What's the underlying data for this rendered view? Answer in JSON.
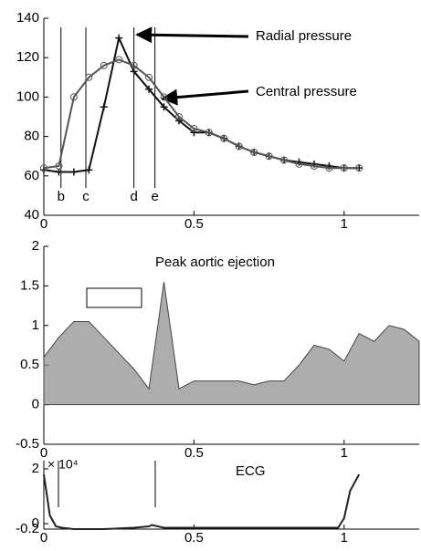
{
  "chart_data": [
    {
      "type": "line",
      "x": [
        0,
        0.05,
        0.1,
        0.15,
        0.2,
        0.25,
        0.3,
        0.35,
        0.4,
        0.45,
        0.5,
        0.55,
        0.6,
        0.65,
        0.7,
        0.75,
        0.8,
        0.85,
        0.9,
        0.95,
        1,
        1.05
      ],
      "series": [
        {
          "name": "Radial pressure",
          "color": "#111111",
          "marker": "plus",
          "values": [
            63,
            62,
            62,
            63,
            95,
            130,
            113,
            104,
            95,
            88,
            82,
            82,
            79,
            75,
            72,
            70,
            68,
            67,
            66,
            65,
            64,
            64
          ]
        },
        {
          "name": "Central pressure",
          "color": "#555555",
          "marker": "circle",
          "values": [
            64,
            65,
            100,
            110,
            116,
            119,
            116,
            110,
            100,
            90,
            84,
            82,
            79,
            75,
            72,
            70,
            68,
            66,
            65,
            64,
            64,
            64
          ]
        }
      ],
      "markers": [
        {
          "label": "b",
          "x": 0.057
        },
        {
          "label": "c",
          "x": 0.14
        },
        {
          "label": "d",
          "x": 0.3
        },
        {
          "label": "e",
          "x": 0.37
        }
      ],
      "xlim": [
        0,
        1.25
      ],
      "xticks": [
        0,
        0.5,
        1
      ],
      "ylim": [
        40,
        140
      ],
      "yticks": [
        40,
        60,
        80,
        100,
        120,
        140
      ]
    },
    {
      "type": "area",
      "annotation": "Peak aortic ejection",
      "x": [
        0,
        0.05,
        0.1,
        0.15,
        0.2,
        0.25,
        0.3,
        0.35,
        0.4,
        0.45,
        0.5,
        0.55,
        0.6,
        0.65,
        0.7,
        0.75,
        0.8,
        0.85,
        0.9,
        0.95,
        1,
        1.05,
        1.1,
        1.15,
        1.2,
        1.25
      ],
      "values": [
        0.6,
        0.85,
        1.05,
        1.05,
        0.85,
        0.65,
        0.45,
        0.2,
        1.55,
        0.2,
        0.3,
        0.3,
        0.3,
        0.3,
        0.25,
        0.3,
        0.3,
        0.5,
        0.75,
        0.7,
        0.55,
        0.9,
        0.8,
        1,
        0.95,
        0.8
      ],
      "color": "#8a8a8a",
      "xlim": [
        0,
        1.25
      ],
      "xticks": [
        0,
        0.5,
        1
      ],
      "ylim": [
        -0.5,
        2
      ],
      "yticks": [
        -0.5,
        0,
        0.5,
        1,
        1.5,
        2
      ]
    },
    {
      "type": "line",
      "title": "ECG",
      "y_multiplier": "× 10⁴",
      "x": [
        0,
        0.02,
        0.04,
        0.06,
        0.1,
        0.2,
        0.3,
        0.35,
        0.36,
        0.4,
        0.5,
        0.6,
        0.7,
        0.8,
        0.9,
        0.98,
        1,
        1.02,
        1.05
      ],
      "series": [
        {
          "color": "#222222",
          "values": [
            1.8,
            0.3,
            -0.1,
            -0.15,
            -0.2,
            -0.2,
            -0.15,
            -0.1,
            -0.05,
            -0.15,
            -0.15,
            -0.15,
            -0.15,
            -0.15,
            -0.15,
            -0.15,
            0.2,
            1.2,
            1.8
          ]
        }
      ],
      "xlim": [
        0,
        1.25
      ],
      "xticks": [
        0,
        0.5,
        1
      ],
      "ylim": [
        -0.2,
        2.3
      ],
      "yticks": [
        -0.2,
        0,
        2
      ]
    }
  ]
}
